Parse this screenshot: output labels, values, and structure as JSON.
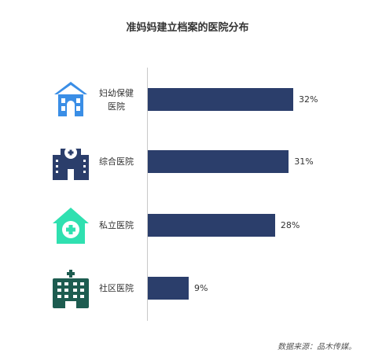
{
  "chart_data": {
    "type": "bar",
    "orientation": "horizontal",
    "title": "准妈妈建立档案的医院分布",
    "categories": [
      "妇幼保健医院",
      "综合医院",
      "私立医院",
      "社区医院"
    ],
    "values": [
      32,
      31,
      28,
      9
    ],
    "value_labels": [
      "32%",
      "31%",
      "28%",
      "9%"
    ],
    "unit": "%",
    "xlim": [
      0,
      40
    ],
    "grid": false,
    "legend": "none",
    "bar_color": "#2b3e6b",
    "icons": [
      "maternity-hospital-icon",
      "general-hospital-icon",
      "private-clinic-icon",
      "community-hospital-icon"
    ],
    "icon_colors": [
      "#3a8ee6",
      "#2b3e6b",
      "#2fe0b0",
      "#1d5c50"
    ]
  },
  "source": "数据来源：品木传媒。"
}
